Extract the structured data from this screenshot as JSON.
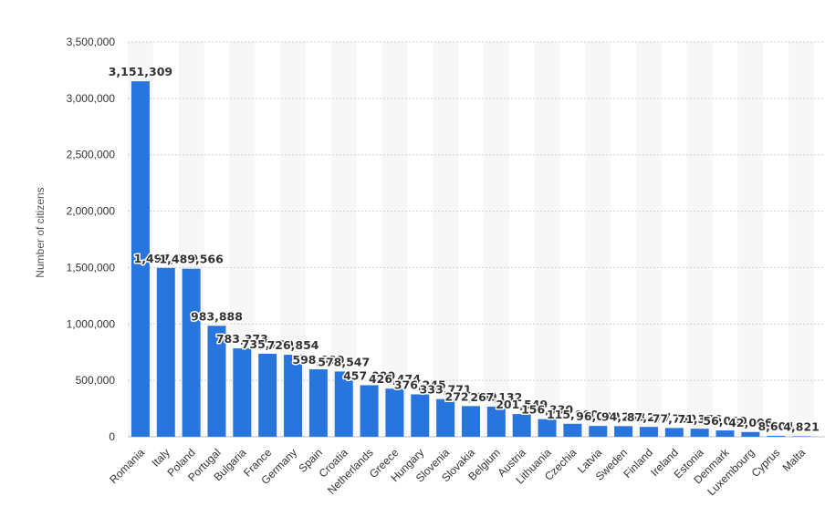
{
  "chart_data": {
    "type": "bar",
    "title": "",
    "xlabel": "",
    "ylabel": "Number of citizens",
    "ylim": [
      0,
      3500000
    ],
    "yticks": [
      0,
      500000,
      1000000,
      1500000,
      2000000,
      2500000,
      3000000,
      3500000
    ],
    "ytick_labels": [
      "0",
      "500,000",
      "1,000,000",
      "1,500,000",
      "2,000,000",
      "2,500,000",
      "3,000,000",
      "3,500,000"
    ],
    "grid": true,
    "legend": "none",
    "bar_color": "#2876dd",
    "categories": [
      "Romania",
      "Italy",
      "Poland",
      "Portugal",
      "Bulgaria",
      "France",
      "Germany",
      "Spain",
      "Croatia",
      "Netherlands",
      "Greece",
      "Hungary",
      "Slovenia",
      "Slovakia",
      "Belgium",
      "Austria",
      "Lithuania",
      "Czechia",
      "Latvia",
      "Sweden",
      "Finland",
      "Ireland",
      "Estonia",
      "Denmark",
      "Luxembourg",
      "Cyprus",
      "Malta"
    ],
    "values": [
      3151309,
      1497000,
      1489566,
      983888,
      783373,
      735700,
      726854,
      598000,
      578547,
      457000,
      426474,
      376245,
      333771,
      272000,
      267132,
      201549,
      156330,
      115000,
      96000,
      94288,
      87277,
      77700,
      71356,
      56000,
      42006,
      8604,
      4821
    ],
    "data_labels": [
      "3,151,309",
      "1,497,000",
      "1,489,566",
      "983,888",
      "783,373",
      "735,700",
      "726,854",
      "598,000",
      "578,547",
      "457,000",
      "426,474",
      "376,245",
      "333,771",
      "272,000",
      "267,132",
      "201,549",
      "156,330",
      "115,000",
      "96,000",
      "94,288",
      "87,277",
      "77,700",
      "71,356",
      "56,000",
      "42,006",
      "8,604",
      "4,821"
    ]
  }
}
